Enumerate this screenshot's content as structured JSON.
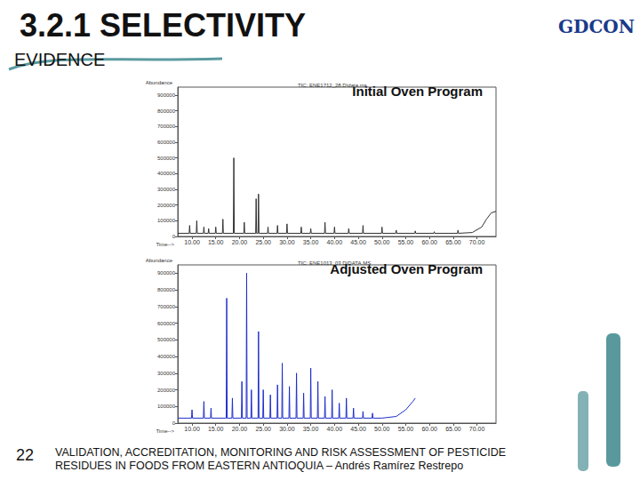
{
  "header": {
    "title": "3.2.1 SELECTIVITY",
    "subtitle": "EVIDENCE",
    "logo": "GDCON"
  },
  "page_number": "22",
  "footer": [
    "VALIDATION, ACCREDITATION, MONITORING AND RISK ASSESSMENT OF PESTICIDE",
    "RESIDUES IN FOODS FROM EASTERN ANTIOQUIA – Andrés Ramírez Restrepo"
  ],
  "chart_data": [
    {
      "type": "line",
      "title": "Initial Oven Program",
      "subtitle": "TIC: ENE1712_28.D\\data.ms",
      "x_label": "Time-->",
      "y_label": "Abundance",
      "color": "#333333",
      "grid": false,
      "x": [
        7,
        9.4,
        9.5,
        9.6,
        10.9,
        11,
        11.1,
        12.4,
        12.5,
        12.6,
        13.4,
        13.5,
        13.6,
        14.9,
        15,
        15.1,
        16.4,
        16.5,
        16.6,
        18.7,
        18.8,
        18.9,
        20.9,
        21,
        21.1,
        23.4,
        23.5,
        23.6,
        23.9,
        24,
        24.1,
        25.9,
        26,
        26.1,
        27.9,
        28,
        28.1,
        29.9,
        30,
        30.1,
        32.9,
        33,
        33.1,
        34.9,
        35,
        35.1,
        37.9,
        38,
        38.1,
        39.9,
        40,
        40.1,
        42.9,
        43,
        43.1,
        45.9,
        46,
        46.1,
        49.9,
        50,
        50.1,
        52.9,
        53,
        53.1,
        56.9,
        57,
        57.1,
        60.9,
        61,
        61.1,
        65.9,
        66,
        66.1,
        69,
        71,
        72,
        73,
        74
      ],
      "values": [
        20000,
        20000,
        70000,
        20000,
        20000,
        100000,
        20000,
        20000,
        60000,
        20000,
        20000,
        50000,
        20000,
        20000,
        60000,
        20000,
        20000,
        110000,
        20000,
        20000,
        500000,
        20000,
        20000,
        90000,
        20000,
        20000,
        240000,
        20000,
        20000,
        270000,
        20000,
        20000,
        60000,
        20000,
        20000,
        70000,
        20000,
        20000,
        80000,
        20000,
        20000,
        60000,
        20000,
        20000,
        50000,
        20000,
        20000,
        90000,
        20000,
        20000,
        60000,
        20000,
        20000,
        50000,
        20000,
        20000,
        70000,
        20000,
        20000,
        60000,
        20000,
        20000,
        40000,
        20000,
        20000,
        35000,
        20000,
        20000,
        30000,
        20000,
        20000,
        40000,
        20000,
        25000,
        60000,
        110000,
        150000,
        160000
      ],
      "xlim": [
        7,
        74
      ],
      "xticks": [
        {
          "value": 10,
          "label": "10.00"
        },
        {
          "value": 15,
          "label": "15.00"
        },
        {
          "value": 20,
          "label": "20.00"
        },
        {
          "value": 25,
          "label": "25.00"
        },
        {
          "value": 30,
          "label": "30.00"
        },
        {
          "value": 35,
          "label": "35.00"
        },
        {
          "value": 40,
          "label": "40.00"
        },
        {
          "value": 45,
          "label": "45.00"
        },
        {
          "value": 50,
          "label": "50.00"
        },
        {
          "value": 55,
          "label": "55.00"
        },
        {
          "value": 60,
          "label": "60.00"
        },
        {
          "value": 65,
          "label": "65.00"
        },
        {
          "value": 70,
          "label": "70.00"
        }
      ],
      "ylim": [
        0,
        950000
      ],
      "yticks": [
        0,
        100000,
        200000,
        300000,
        400000,
        500000,
        600000,
        700000,
        800000,
        900000
      ]
    },
    {
      "type": "line",
      "title": "Adjusted Oven Program",
      "subtitle": "TIC: ENE1013_03.D\\DATA.MS",
      "x_label": "Time-->",
      "y_label": "Abundance",
      "color": "#1f2ec8",
      "grid": false,
      "x": [
        7,
        9.9,
        10,
        10.1,
        12.4,
        12.5,
        12.6,
        13.9,
        14,
        14.1,
        17.2,
        17.3,
        17.4,
        18.4,
        18.5,
        18.6,
        20.4,
        20.5,
        20.6,
        21.4,
        21.5,
        21.6,
        22.4,
        22.5,
        22.6,
        23.9,
        24,
        24.1,
        24.9,
        25,
        25.1,
        26.4,
        26.5,
        26.6,
        27.9,
        28,
        28.1,
        28.9,
        29,
        29.1,
        30.4,
        30.5,
        30.6,
        31.9,
        32,
        32.1,
        33.4,
        33.5,
        33.6,
        34.9,
        35,
        35.1,
        36.4,
        36.5,
        36.6,
        37.9,
        38,
        38.1,
        39.4,
        39.5,
        39.6,
        40.9,
        41,
        41.1,
        42.4,
        42.5,
        42.6,
        43.9,
        44,
        44.1,
        45.9,
        46,
        46.1,
        47.9,
        48,
        48.1,
        50,
        53,
        55,
        56.5,
        57
      ],
      "values": [
        30000,
        30000,
        80000,
        30000,
        30000,
        130000,
        30000,
        30000,
        90000,
        30000,
        30000,
        750000,
        30000,
        30000,
        150000,
        30000,
        30000,
        250000,
        30000,
        30000,
        900000,
        30000,
        30000,
        200000,
        30000,
        30000,
        550000,
        30000,
        30000,
        200000,
        30000,
        30000,
        170000,
        30000,
        30000,
        230000,
        30000,
        30000,
        360000,
        30000,
        30000,
        220000,
        30000,
        30000,
        300000,
        30000,
        30000,
        180000,
        30000,
        30000,
        330000,
        30000,
        30000,
        250000,
        30000,
        30000,
        160000,
        30000,
        30000,
        200000,
        30000,
        30000,
        120000,
        30000,
        30000,
        150000,
        30000,
        30000,
        90000,
        30000,
        30000,
        70000,
        30000,
        30000,
        60000,
        30000,
        30000,
        40000,
        80000,
        130000,
        150000
      ],
      "xlim": [
        7,
        74
      ],
      "xticks": [
        {
          "value": 10,
          "label": "10.00"
        },
        {
          "value": 15,
          "label": "15.00"
        },
        {
          "value": 20,
          "label": "20.00"
        },
        {
          "value": 25,
          "label": "25.00"
        },
        {
          "value": 30,
          "label": "30.00"
        },
        {
          "value": 35,
          "label": "35.00"
        },
        {
          "value": 40,
          "label": "40.00"
        },
        {
          "value": 45,
          "label": "45.00"
        },
        {
          "value": 50,
          "label": "50.00"
        },
        {
          "value": 55,
          "label": "55.00"
        },
        {
          "value": 60,
          "label": "60.00"
        },
        {
          "value": 65,
          "label": "65.00"
        },
        {
          "value": 70,
          "label": "70.00"
        }
      ],
      "ylim": [
        0,
        950000
      ],
      "yticks": [
        0,
        100000,
        200000,
        300000,
        400000,
        500000,
        600000,
        700000,
        800000,
        900000
      ]
    }
  ]
}
